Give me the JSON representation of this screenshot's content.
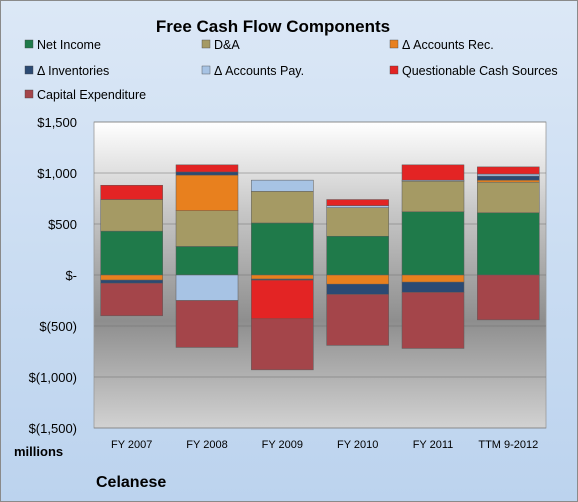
{
  "chart_data": {
    "type": "bar",
    "stacked": true,
    "title": "Free Cash Flow Components",
    "ylabel": "millions",
    "footer": "Celanese",
    "ylim": [
      -1500,
      1500
    ],
    "yticks": [
      1500,
      1000,
      500,
      0,
      -500,
      -1000,
      -1500
    ],
    "ytick_labels": [
      "$1,500",
      "$1,000",
      "$500",
      "$-",
      "$(500)",
      "$(1,000)",
      "$(1,500)"
    ],
    "categories": [
      "FY 2007",
      "FY 2008",
      "FY 2009",
      "FY 2010",
      "FY 2011",
      "TTM 9-2012"
    ],
    "legend_placement": "top",
    "grid": true,
    "series": [
      {
        "name": "Net Income",
        "color": "#1f7a4a",
        "values": [
          430,
          280,
          510,
          380,
          620,
          610
        ]
      },
      {
        "name": "D&A",
        "color": "#a59a64",
        "values": [
          310,
          350,
          310,
          280,
          300,
          300
        ]
      },
      {
        "name": "Δ Accounts Rec.",
        "color": "#e8801e",
        "values": [
          -50,
          350,
          -40,
          -90,
          -70,
          20
        ]
      },
      {
        "name": "Δ Inventories",
        "color": "#2b4a73",
        "values": [
          -30,
          30,
          -10,
          -100,
          -100,
          40
        ]
      },
      {
        "name": "Δ Accounts Pay.",
        "color": "#a7c3e4",
        "values": [
          0,
          -250,
          110,
          20,
          10,
          20
        ]
      },
      {
        "name": "Questionable Cash Sources",
        "color": "#e32424",
        "values": [
          140,
          70,
          -380,
          60,
          150,
          70
        ]
      },
      {
        "name": "Capital Expenditure",
        "color": "#a4454a",
        "values": [
          -320,
          -460,
          -500,
          -500,
          -550,
          -440
        ]
      }
    ]
  }
}
